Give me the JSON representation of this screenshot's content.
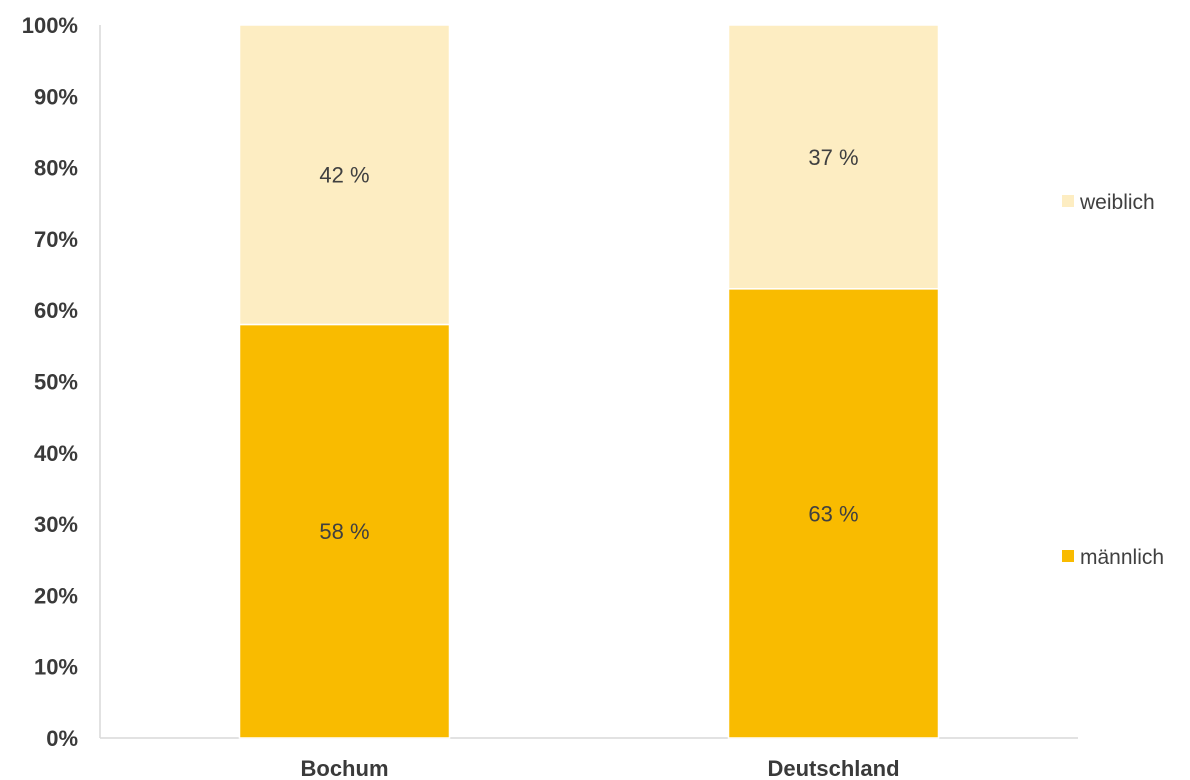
{
  "chart_data": {
    "type": "bar",
    "stacked": true,
    "percent_stacked": true,
    "categories": [
      "Bochum",
      "Deutschland"
    ],
    "series": [
      {
        "name": "männlich",
        "values": [
          58,
          63
        ],
        "labels": [
          "58 %",
          "63 %"
        ],
        "color": "#F9BB00"
      },
      {
        "name": "weiblich",
        "values": [
          42,
          37
        ],
        "labels": [
          "42 %",
          "37 %"
        ],
        "color": "#FDEDC2"
      }
    ],
    "yticks": [
      "0%",
      "10%",
      "20%",
      "30%",
      "40%",
      "50%",
      "60%",
      "70%",
      "80%",
      "90%",
      "100%"
    ],
    "ylim": [
      0,
      100
    ],
    "grid": false,
    "legend_position": "right",
    "title": "",
    "xlabel": "",
    "ylabel": ""
  }
}
